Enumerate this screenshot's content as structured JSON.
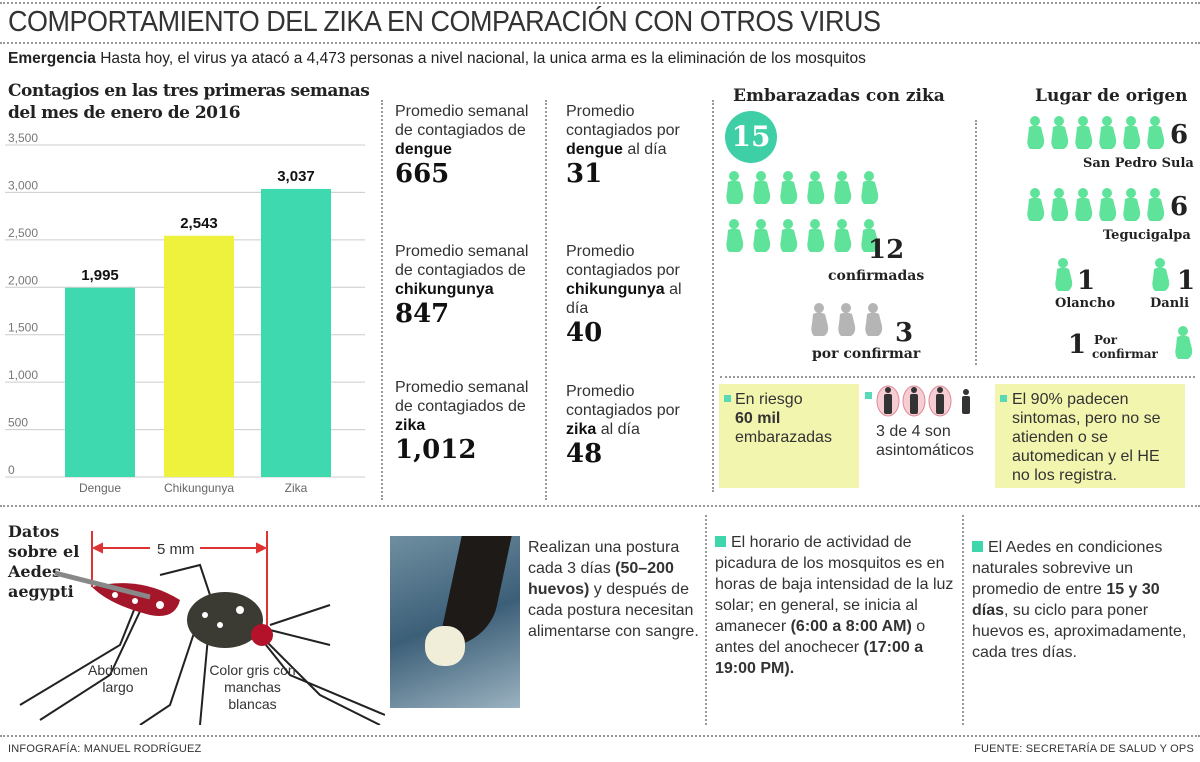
{
  "title": "COMPORTAMIENTO DEL ZIKA EN COMPARACIÓN CON OTROS VIRUS",
  "subtitle": {
    "lead": "Emergencia",
    "text": " Hasta hoy, el virus ya atacó a 4,473 personas a nivel nacional, la unica arma es la eliminación de los mosquitos"
  },
  "chart_data": {
    "type": "bar",
    "title": "Contagios en las tres primeras semanas del mes de enero de 2016",
    "title_lines": [
      "Contagios en las tres primeras semanas",
      "del mes de enero de 2016"
    ],
    "categories": [
      "Dengue",
      "Chikungunya",
      "Zika"
    ],
    "values": [
      1995,
      2543,
      3037
    ],
    "data_labels": [
      "1,995",
      "2,543",
      "3,037"
    ],
    "colors": [
      "#3fd9b0",
      "#eef23c",
      "#3fd9b0"
    ],
    "ylim": [
      0,
      3500
    ],
    "yticks": [
      "0",
      "500",
      "1,000",
      "1,500",
      "2,000",
      "2,500",
      "3,000",
      "3,500"
    ],
    "grid": true
  },
  "weekly": [
    {
      "pre": "Promedio semanal de contagiados de ",
      "virus": "dengue",
      "value": "665"
    },
    {
      "pre": "Promedio semanal de contagiados de ",
      "virus": "chikungunya",
      "value": "847"
    },
    {
      "pre": "Promedio semanal de contagiados de ",
      "virus": "zika",
      "value": "1,012"
    }
  ],
  "daily": [
    {
      "pre": "Promedio contagiados por ",
      "virus": "dengue",
      "post": " al día",
      "value": "31"
    },
    {
      "pre": "Promedio contagiados por ",
      "virus": "chikungunya",
      "post": " al día",
      "value": "40"
    },
    {
      "pre": "Promedio contagiados por ",
      "virus": "zika",
      "post": " al día",
      "value": "48"
    }
  ],
  "pregnant": {
    "heading": "Embarazadas con zika",
    "total": "15",
    "confirmed": "12",
    "confirmed_label": "confirmadas",
    "pending": "3",
    "pending_label": "por confirmar",
    "icon": "pregnant-woman-icon",
    "green": "#5fe39a",
    "gray": "#b5b5b5"
  },
  "origin": {
    "heading": "Lugar de origen",
    "places": [
      {
        "name": "San Pedro Sula",
        "count": "6"
      },
      {
        "name": "Tegucigalpa",
        "count": "6"
      },
      {
        "name": "Olancho",
        "count": "1"
      },
      {
        "name": "Danli",
        "count": "1"
      }
    ],
    "pending_count": "1",
    "pending_label1": "Por",
    "pending_label2": "confirmar"
  },
  "facts": {
    "risk_pre": "En riesgo",
    "risk_bold": "60 mil",
    "risk_post": "embarazadas",
    "asym": "3 de 4 son asintomáticos",
    "symptoms": "El 90% padecen sintomas, pero no se atienden o se automedican y el HE no los registra."
  },
  "aedes": {
    "heading": "Datos sobre el Aedes aegypti",
    "size": "5 mm",
    "abdomen": "Abdomen largo",
    "color": "Color gris con manchas blancas"
  },
  "eggs": {
    "a": "Realizan una postura cada 3 días ",
    "b": "(50–200 huevos)",
    "c": " y después de cada postura necesitan alimentarse con sangre."
  },
  "schedule": {
    "a": "El horario de actividad de picadura de los mosquitos es en horas de baja intensidad de la luz solar; en general, se inicia al amanecer ",
    "b": "(6:00 a 8:00 AM)",
    "c": " o antes del anochecer ",
    "d": "(17:00 a 19:00 PM)."
  },
  "lifespan": {
    "a": "El Aedes en condiciones naturales sobrevive un promedio de entre ",
    "b": "15 y 30 días",
    "c": ", su ciclo para poner huevos es, aproximadamente, cada tres días."
  },
  "footer": {
    "left": "INFOGRAFÍA: MANUEL RODRÍGUEZ",
    "right": "FUENTE: SECRETARÍA DE SALUD Y OPS"
  }
}
